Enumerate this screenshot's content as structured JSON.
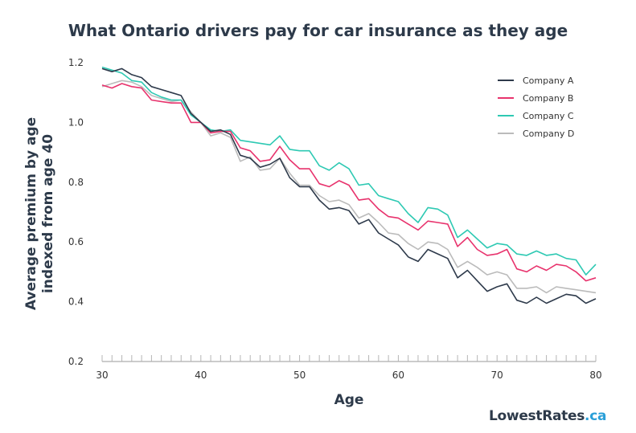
{
  "chart_data": {
    "type": "line",
    "title": "What Ontario drivers pay for car insurance as they age",
    "xlabel": "Age",
    "ylabel": [
      "Average premium by age",
      "indexed from age 40"
    ],
    "xlim": [
      30,
      80
    ],
    "ylim": [
      0.2,
      1.2
    ],
    "x_ticks": [
      30,
      40,
      50,
      60,
      70,
      80
    ],
    "y_ticks": [
      "0.2",
      "0.4",
      "0.6",
      "0.8",
      "1.0",
      "1.2"
    ],
    "grid": false,
    "legend_position": "top-right",
    "x": [
      30,
      31,
      32,
      33,
      34,
      35,
      36,
      37,
      38,
      39,
      40,
      41,
      42,
      43,
      44,
      45,
      46,
      47,
      48,
      49,
      50,
      51,
      52,
      53,
      54,
      55,
      56,
      57,
      58,
      59,
      60,
      61,
      62,
      63,
      64,
      65,
      66,
      67,
      68,
      69,
      70,
      71,
      72,
      73,
      74,
      75,
      76,
      77,
      78,
      79,
      80
    ],
    "series": [
      {
        "name": "Company A",
        "color": "#2e3a4b",
        "values": [
          1.18,
          1.17,
          1.18,
          1.16,
          1.15,
          1.12,
          1.11,
          1.1,
          1.09,
          1.03,
          1.0,
          0.97,
          0.975,
          0.96,
          0.89,
          0.88,
          0.85,
          0.86,
          0.88,
          0.815,
          0.785,
          0.785,
          0.74,
          0.71,
          0.715,
          0.705,
          0.66,
          0.675,
          0.63,
          0.61,
          0.59,
          0.55,
          0.535,
          0.575,
          0.56,
          0.545,
          0.48,
          0.505,
          0.47,
          0.435,
          0.45,
          0.46,
          0.405,
          0.395,
          0.415,
          0.395,
          0.41,
          0.425,
          0.42,
          0.395,
          0.41
        ]
      },
      {
        "name": "Company B",
        "color": "#e8336d",
        "values": [
          1.125,
          1.115,
          1.13,
          1.12,
          1.115,
          1.075,
          1.07,
          1.065,
          1.065,
          1.0,
          1.0,
          0.965,
          0.97,
          0.97,
          0.915,
          0.905,
          0.87,
          0.875,
          0.92,
          0.875,
          0.845,
          0.845,
          0.795,
          0.785,
          0.805,
          0.79,
          0.74,
          0.745,
          0.71,
          0.685,
          0.68,
          0.66,
          0.64,
          0.67,
          0.665,
          0.66,
          0.585,
          0.615,
          0.575,
          0.555,
          0.56,
          0.575,
          0.51,
          0.5,
          0.52,
          0.505,
          0.525,
          0.52,
          0.5,
          0.47,
          0.48
        ]
      },
      {
        "name": "Company C",
        "color": "#2ec9b3",
        "values": [
          1.185,
          1.175,
          1.165,
          1.14,
          1.135,
          1.1,
          1.085,
          1.075,
          1.075,
          1.025,
          1.0,
          0.975,
          0.97,
          0.975,
          0.94,
          0.935,
          0.93,
          0.925,
          0.955,
          0.91,
          0.905,
          0.905,
          0.855,
          0.84,
          0.865,
          0.845,
          0.79,
          0.795,
          0.755,
          0.745,
          0.735,
          0.695,
          0.665,
          0.715,
          0.71,
          0.69,
          0.615,
          0.64,
          0.61,
          0.58,
          0.595,
          0.59,
          0.56,
          0.555,
          0.57,
          0.555,
          0.56,
          0.545,
          0.54,
          0.49,
          0.525
        ]
      },
      {
        "name": "Company D",
        "color": "#bbbbbb",
        "values": [
          1.12,
          1.13,
          1.14,
          1.135,
          1.12,
          1.09,
          1.08,
          1.07,
          1.075,
          1.035,
          1.0,
          0.955,
          0.965,
          0.95,
          0.87,
          0.885,
          0.84,
          0.845,
          0.88,
          0.83,
          0.79,
          0.79,
          0.755,
          0.735,
          0.74,
          0.725,
          0.68,
          0.695,
          0.665,
          0.63,
          0.625,
          0.595,
          0.575,
          0.6,
          0.595,
          0.575,
          0.515,
          0.535,
          0.515,
          0.49,
          0.5,
          0.49,
          0.445,
          0.445,
          0.45,
          0.43,
          0.45,
          0.445,
          0.44,
          0.435,
          0.43
        ]
      }
    ]
  },
  "brand": {
    "name": "LowestRates",
    "suffix": ".ca"
  }
}
